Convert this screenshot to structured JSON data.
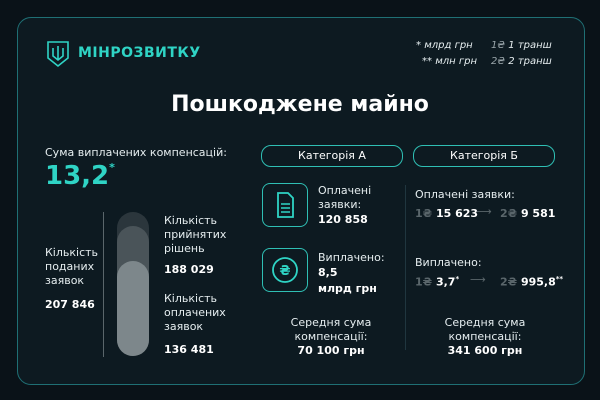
{
  "brand": {
    "name": "МІНРОЗВИТКУ"
  },
  "legend": {
    "star1_mark": "*",
    "star1_text": "млрд грн",
    "star2_mark": "**",
    "star2_text": "млн грн",
    "tranche1_mark": "1₴",
    "tranche1_text": "1 транш",
    "tranche2_mark": "2₴",
    "tranche2_text": "2 транш"
  },
  "title": "Пошкоджене майно",
  "left": {
    "total_label": "Сума виплачених компенсацій:",
    "total_value": "13,2",
    "total_unit_mark": "*",
    "applications_label": "Кількість поданих заявок",
    "applications_value": "207 846",
    "decisions_label": "Кількість прийнятих рішень",
    "decisions_value": "188 029",
    "paid_label": "Кількість оплачених заявок",
    "paid_value": "136 481",
    "bar_levels": {
      "decisions_ratio": 0.905,
      "paid_ratio": 0.657
    }
  },
  "category_a": {
    "title": "Категорія А",
    "paid_apps_label": "Оплачені заявки:",
    "paid_apps_value": "120 858",
    "paid_label": "Виплачено:",
    "paid_value": "8,5",
    "paid_unit": "млрд грн",
    "avg_label": "Середня сума компенсації:",
    "avg_value": "70 100 грн",
    "icons": [
      "document-icon",
      "hryvnia-coin-icon"
    ]
  },
  "category_b": {
    "title": "Категорія Б",
    "paid_apps_label": "Оплачені заявки:",
    "t1_mark": "1₴",
    "t1_apps": "15 623",
    "t2_mark": "2₴",
    "t2_apps": "9 581",
    "paid_label": "Виплачено:",
    "t1_paid": "3,7",
    "t1_paid_mark": "*",
    "t2_paid": "995,8",
    "t2_paid_mark": "**",
    "avg_label": "Середня сума компенсації:",
    "avg_value": "341 600 грн"
  },
  "colors": {
    "accent": "#2fd4c5",
    "background": "#0d1a21",
    "border": "#1f6f74",
    "muted": "#5a666b"
  }
}
